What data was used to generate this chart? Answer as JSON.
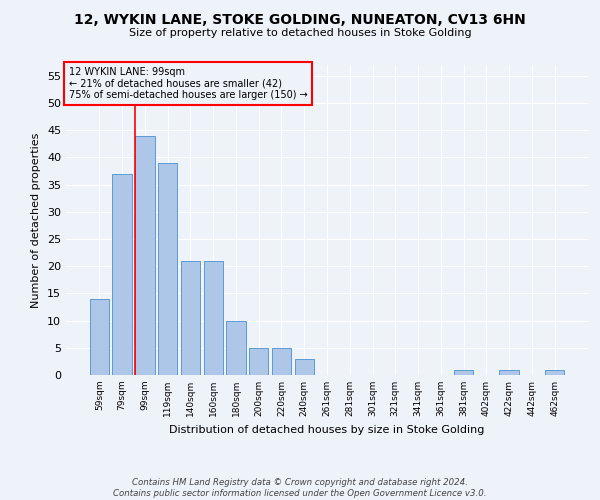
{
  "title": "12, WYKIN LANE, STOKE GOLDING, NUNEATON, CV13 6HN",
  "subtitle": "Size of property relative to detached houses in Stoke Golding",
  "xlabel": "Distribution of detached houses by size in Stoke Golding",
  "ylabel": "Number of detached properties",
  "footnote1": "Contains HM Land Registry data © Crown copyright and database right 2024.",
  "footnote2": "Contains public sector information licensed under the Open Government Licence v3.0.",
  "annotation_line1": "12 WYKIN LANE: 99sqm",
  "annotation_line2": "← 21% of detached houses are smaller (42)",
  "annotation_line3": "75% of semi-detached houses are larger (150) →",
  "bar_labels": [
    "59sqm",
    "79sqm",
    "99sqm",
    "119sqm",
    "140sqm",
    "160sqm",
    "180sqm",
    "200sqm",
    "220sqm",
    "240sqm",
    "261sqm",
    "281sqm",
    "301sqm",
    "321sqm",
    "341sqm",
    "361sqm",
    "381sqm",
    "402sqm",
    "422sqm",
    "442sqm",
    "462sqm"
  ],
  "bar_values": [
    14,
    37,
    44,
    39,
    21,
    21,
    10,
    5,
    5,
    3,
    0,
    0,
    0,
    0,
    0,
    0,
    1,
    0,
    1,
    0,
    1
  ],
  "bar_color": "#aec6e8",
  "bar_edge_color": "#5b9bd5",
  "vline_color": "red",
  "ylim": [
    0,
    57
  ],
  "yticks": [
    0,
    5,
    10,
    15,
    20,
    25,
    30,
    35,
    40,
    45,
    50,
    55
  ],
  "annotation_box_color": "red",
  "background_color": "#eef2f9",
  "grid_color": "#ffffff"
}
